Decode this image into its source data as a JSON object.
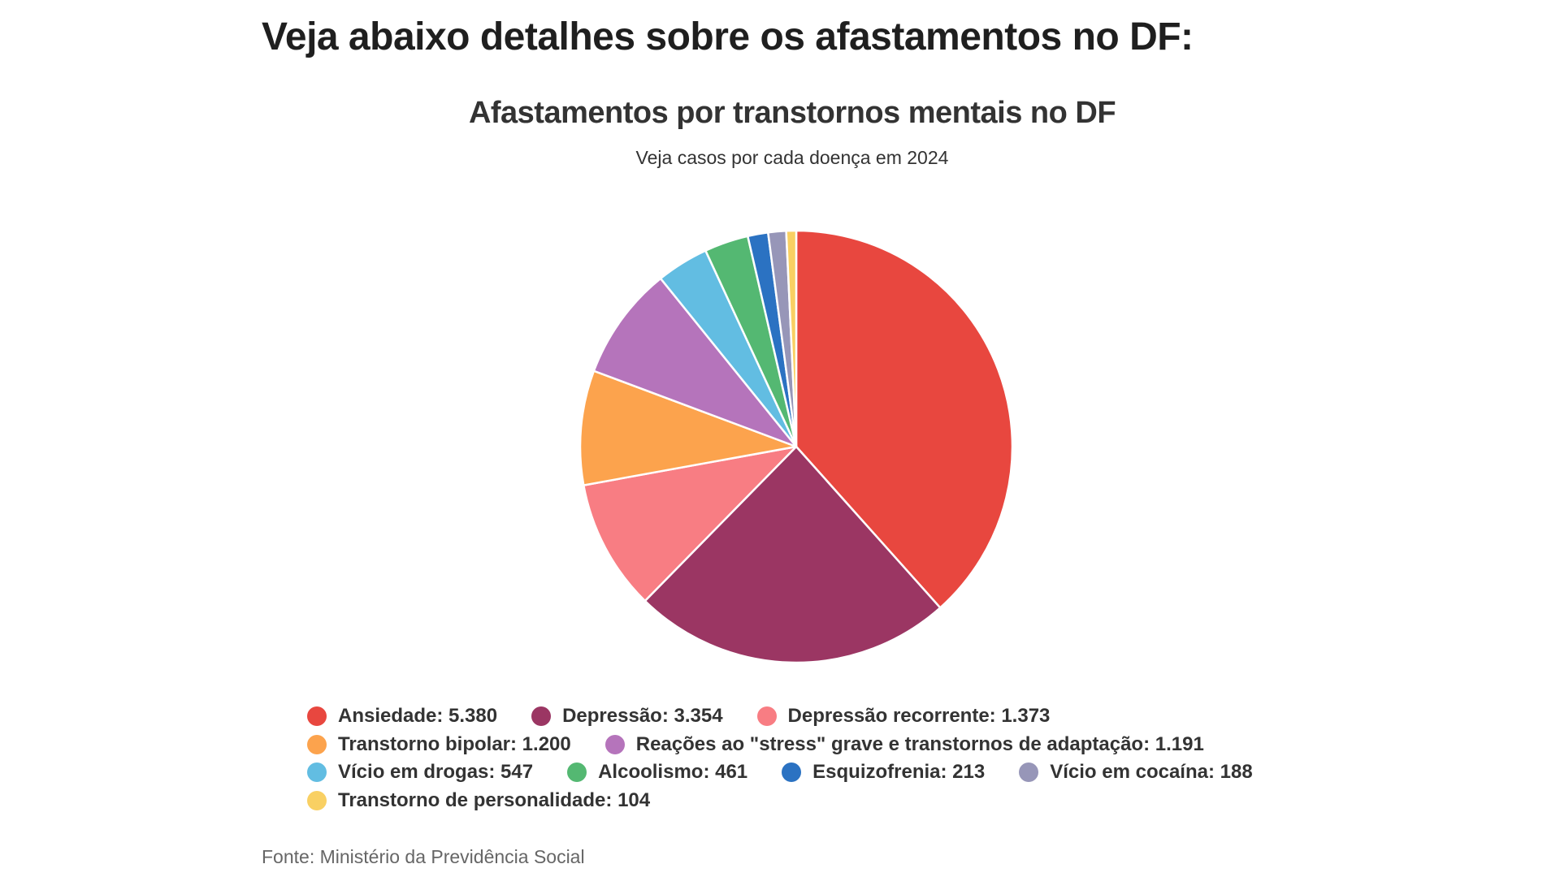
{
  "headline": "Veja abaixo detalhes sobre os afastamentos no DF:",
  "source": "Fonte: Ministério da Previdência Social",
  "chart_data": {
    "type": "pie",
    "title": "Afastamentos por transtornos mentais no DF",
    "subtitle": "Veja casos por cada doença em 2024",
    "legend_position": "bottom",
    "slices": [
      {
        "label": "Ansiedade",
        "value": 5380,
        "display": "Ansiedade: 5.380",
        "color": "#e8473f"
      },
      {
        "label": "Depressão",
        "value": 3354,
        "display": "Depressão: 3.354",
        "color": "#9b3663"
      },
      {
        "label": "Depressão recorrente",
        "value": 1373,
        "display": "Depressão recorrente: 1.373",
        "color": "#f87d83"
      },
      {
        "label": "Transtorno bipolar",
        "value": 1200,
        "display": "Transtorno bipolar: 1.200",
        "color": "#fca34d"
      },
      {
        "label": "Reações ao \"stress\" grave e transtornos de adaptação",
        "value": 1191,
        "display": "Reações ao \"stress\" grave e transtornos de adaptação: 1.191",
        "color": "#b574bb"
      },
      {
        "label": "Vício em drogas",
        "value": 547,
        "display": "Vício em drogas: 547",
        "color": "#62bde2"
      },
      {
        "label": "Alcoolismo",
        "value": 461,
        "display": "Alcoolismo: 461",
        "color": "#54b872"
      },
      {
        "label": "Esquizofrenia",
        "value": 213,
        "display": "Esquizofrenia: 213",
        "color": "#2b72c2"
      },
      {
        "label": "Vício em cocaína",
        "value": 188,
        "display": "Vício em cocaína: 188",
        "color": "#9796b8"
      },
      {
        "label": "Transtorno de personalidade",
        "value": 104,
        "display": "Transtorno de personalidade: 104",
        "color": "#f9d063"
      }
    ]
  }
}
